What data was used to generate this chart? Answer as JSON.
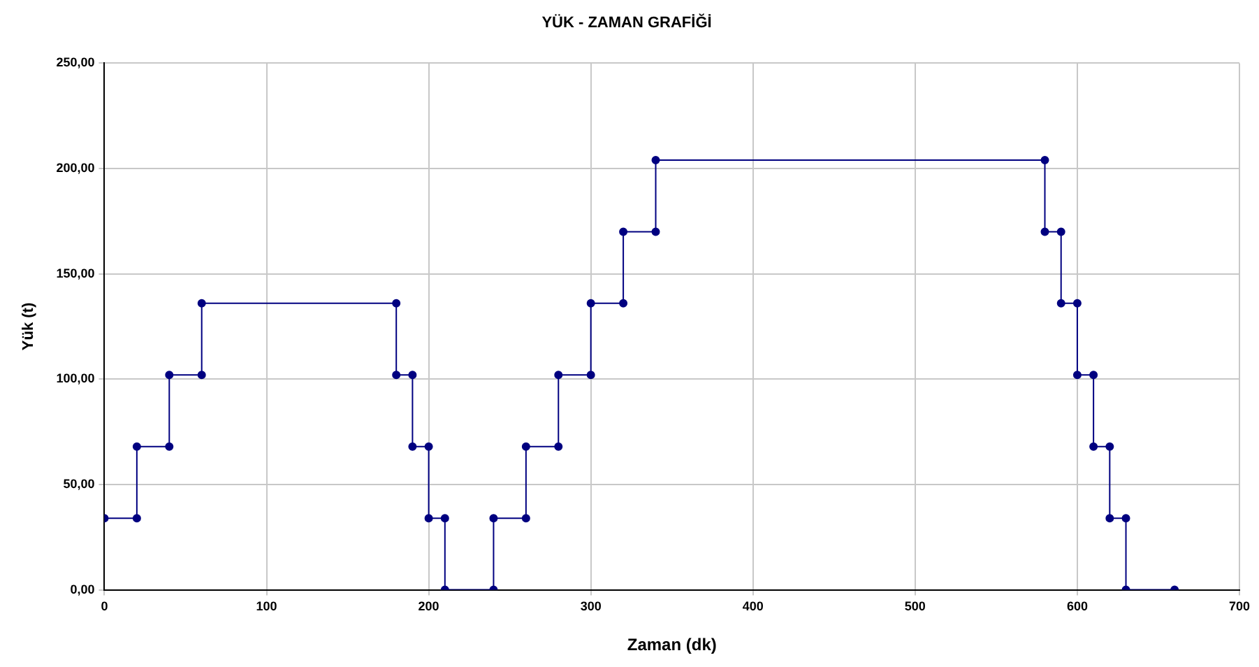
{
  "chart_data": {
    "type": "line",
    "title": "YÜK - ZAMAN GRAFİĞİ",
    "xlabel": "Zaman (dk)",
    "ylabel": "Yük (t)",
    "x": [
      0,
      20,
      20,
      40,
      40,
      60,
      60,
      180,
      180,
      190,
      190,
      200,
      200,
      210,
      210,
      240,
      240,
      260,
      260,
      280,
      280,
      300,
      300,
      320,
      320,
      340,
      340,
      580,
      580,
      590,
      590,
      600,
      600,
      610,
      610,
      620,
      620,
      630,
      630,
      660
    ],
    "series": [
      {
        "color": "#000080",
        "values": [
          34,
          34,
          68,
          68,
          102,
          102,
          136,
          136,
          102,
          102,
          68,
          68,
          34,
          34,
          0,
          0,
          34,
          34,
          68,
          68,
          102,
          102,
          136,
          136,
          170,
          170,
          204,
          204,
          170,
          170,
          136,
          136,
          102,
          102,
          68,
          68,
          34,
          34,
          0,
          0
        ]
      }
    ],
    "xlim": [
      0,
      700
    ],
    "xticks": [
      0,
      100,
      200,
      300,
      400,
      500,
      600,
      700
    ],
    "ylim": [
      0,
      250
    ],
    "yticks": [
      {
        "value": 0,
        "label": "0,00"
      },
      {
        "value": 50,
        "label": "50,00"
      },
      {
        "value": 100,
        "label": "100,00"
      },
      {
        "value": 150,
        "label": "150,00"
      },
      {
        "value": 200,
        "label": "200,00"
      },
      {
        "value": 250,
        "label": "250,00"
      }
    ],
    "grid": true,
    "legend": false,
    "marker": "circle",
    "line_style": "solid"
  }
}
